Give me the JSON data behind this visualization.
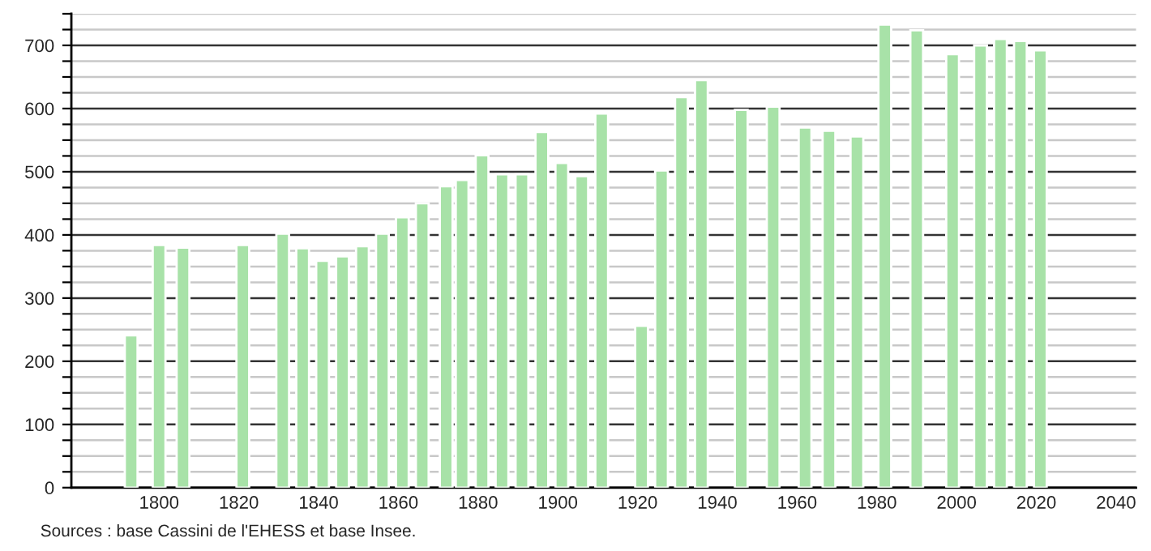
{
  "chart_data": {
    "type": "bar",
    "x": [
      1793,
      1800,
      1806,
      1821,
      1831,
      1836,
      1841,
      1846,
      1851,
      1856,
      1861,
      1866,
      1872,
      1876,
      1881,
      1886,
      1891,
      1896,
      1901,
      1906,
      1911,
      1921,
      1926,
      1931,
      1936,
      1946,
      1954,
      1962,
      1968,
      1975,
      1982,
      1990,
      1999,
      2006,
      2011,
      2016,
      2021
    ],
    "values": [
      241,
      384,
      380,
      384,
      402,
      379,
      359,
      366,
      382,
      402,
      428,
      450,
      477,
      487,
      526,
      496,
      496,
      563,
      514,
      493,
      592,
      256,
      502,
      618,
      645,
      598,
      603,
      570,
      565,
      556,
      733,
      724,
      686,
      700,
      710,
      707,
      692
    ],
    "color": "#a8e2a8",
    "xlim": [
      1778,
      2045
    ],
    "xticks": [
      1800,
      1820,
      1840,
      1860,
      1880,
      1900,
      1920,
      1940,
      1960,
      1980,
      2000,
      2020,
      2040
    ],
    "ylim": [
      0,
      750
    ],
    "yticks": [
      0,
      {
        "value": 25,
        "label": null
      },
      {
        "value": 50,
        "label": null
      },
      {
        "value": 75,
        "label": null
      },
      100,
      {
        "value": 125,
        "label": null
      },
      {
        "value": 150,
        "label": null
      },
      {
        "value": 175,
        "label": null
      },
      200,
      {
        "value": 225,
        "label": null
      },
      {
        "value": 250,
        "label": null
      },
      {
        "value": 275,
        "label": null
      },
      300,
      {
        "value": 325,
        "label": null
      },
      {
        "value": 350,
        "label": null
      },
      {
        "value": 375,
        "label": null
      },
      400,
      {
        "value": 425,
        "label": null
      },
      {
        "value": 450,
        "label": null
      },
      {
        "value": 475,
        "label": null
      },
      500,
      {
        "value": 525,
        "label": null
      },
      {
        "value": 550,
        "label": null
      },
      {
        "value": 575,
        "label": null
      },
      600,
      {
        "value": 625,
        "label": null
      },
      {
        "value": 650,
        "label": null
      },
      {
        "value": 675,
        "label": null
      },
      700,
      {
        "value": 725,
        "label": null
      },
      {
        "value": 750,
        "label": null
      }
    ],
    "grid": "y",
    "legend": false,
    "annotations": [
      "Sources : base Cassini de l'EHESS et base Insee."
    ]
  }
}
